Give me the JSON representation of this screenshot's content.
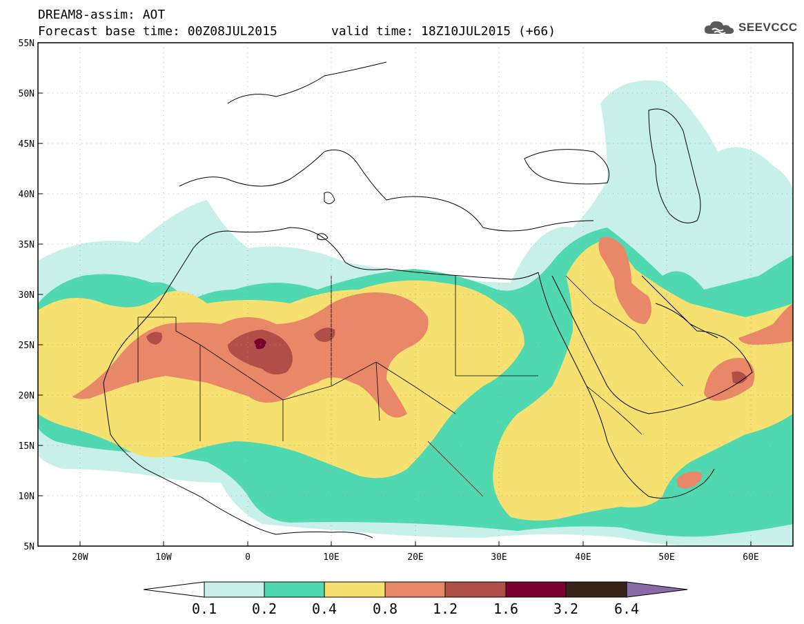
{
  "header": {
    "title_line1": "DREAM8-assim: AOT",
    "title_line2": "Forecast base time: 00Z08JUL2015",
    "valid_time": "valid time: 18Z10JUL2015 (+66)",
    "logo_text": "SEEVCCC"
  },
  "map": {
    "lon_range": [
      -25,
      65
    ],
    "lat_range": [
      5,
      55
    ],
    "lat_ticks": [
      "5N",
      "10N",
      "15N",
      "20N",
      "25N",
      "30N",
      "35N",
      "40N",
      "45N",
      "50N",
      "55N"
    ],
    "lon_ticks": [
      "20W",
      "10W",
      "0",
      "10E",
      "20E",
      "30E",
      "40E",
      "50E",
      "60E"
    ]
  },
  "legend": {
    "levels": [
      "0.1",
      "0.2",
      "0.4",
      "0.8",
      "1.2",
      "1.6",
      "3.2",
      "6.4"
    ],
    "colors": [
      "#c8f0ea",
      "#50d8b0",
      "#f5e070",
      "#e88868",
      "#b04e48",
      "#7a0030",
      "#3a2418",
      "#8a6aa8"
    ]
  },
  "colors": {
    "ocean": "#ffffff",
    "land": "#ffffff",
    "border": "#000000"
  }
}
